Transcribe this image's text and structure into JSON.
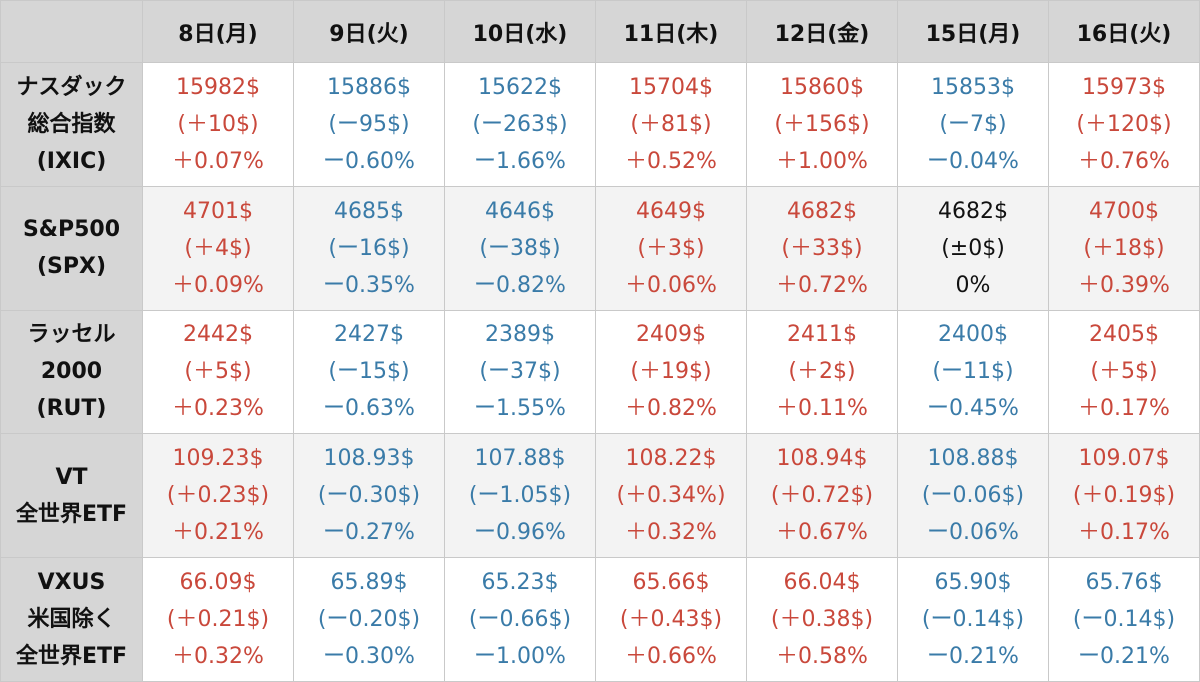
{
  "colors": {
    "up": "#c9483b",
    "down": "#3a7ba8",
    "flat": "#111111",
    "header_bg": "#d6d6d6"
  },
  "days": [
    "8日(月)",
    "9日(火)",
    "10日(水)",
    "11日(木)",
    "12日(金)",
    "15日(月)",
    "16日(火)"
  ],
  "rows": [
    {
      "label": [
        "ナスダック",
        "総合指数",
        "(IXIC)"
      ],
      "cells": [
        {
          "trend": "up",
          "price": "15982$",
          "change": "(＋10$)",
          "pct": "＋0.07%"
        },
        {
          "trend": "down",
          "price": "15886$",
          "change": "(ー95$)",
          "pct": "ー0.60%"
        },
        {
          "trend": "down",
          "price": "15622$",
          "change": "(ー263$)",
          "pct": "ー1.66%"
        },
        {
          "trend": "up",
          "price": "15704$",
          "change": "(＋81$)",
          "pct": "＋0.52%"
        },
        {
          "trend": "up",
          "price": "15860$",
          "change": "(＋156$)",
          "pct": "＋1.00%"
        },
        {
          "trend": "down",
          "price": "15853$",
          "change": "(ー7$)",
          "pct": "ー0.04%"
        },
        {
          "trend": "up",
          "price": "15973$",
          "change": "(＋120$)",
          "pct": "＋0.76%"
        }
      ]
    },
    {
      "label": [
        "S&P500",
        "(SPX)"
      ],
      "cells": [
        {
          "trend": "up",
          "price": "4701$",
          "change": "(＋4$)",
          "pct": "＋0.09%"
        },
        {
          "trend": "down",
          "price": "4685$",
          "change": "(ー16$)",
          "pct": "ー0.35%"
        },
        {
          "trend": "down",
          "price": "4646$",
          "change": "(ー38$)",
          "pct": "ー0.82%"
        },
        {
          "trend": "up",
          "price": "4649$",
          "change": "(＋3$)",
          "pct": "＋0.06%"
        },
        {
          "trend": "up",
          "price": "4682$",
          "change": "(＋33$)",
          "pct": "＋0.72%"
        },
        {
          "trend": "flat",
          "price": "4682$",
          "change": "(±0$)",
          "pct": "0%"
        },
        {
          "trend": "up",
          "price": "4700$",
          "change": "(＋18$)",
          "pct": "＋0.39%"
        }
      ]
    },
    {
      "label": [
        "ラッセル",
        "2000",
        "(RUT)"
      ],
      "cells": [
        {
          "trend": "up",
          "price": "2442$",
          "change": "(＋5$)",
          "pct": "＋0.23%"
        },
        {
          "trend": "down",
          "price": "2427$",
          "change": "(ー15$)",
          "pct": "ー0.63%"
        },
        {
          "trend": "down",
          "price": "2389$",
          "change": "(ー37$)",
          "pct": "ー1.55%"
        },
        {
          "trend": "up",
          "price": "2409$",
          "change": "(＋19$)",
          "pct": "＋0.82%"
        },
        {
          "trend": "up",
          "price": "2411$",
          "change": "(＋2$)",
          "pct": "＋0.11%"
        },
        {
          "trend": "down",
          "price": "2400$",
          "change": "(ー11$)",
          "pct": "ー0.45%"
        },
        {
          "trend": "up",
          "price": "2405$",
          "change": "(＋5$)",
          "pct": "＋0.17%"
        }
      ]
    },
    {
      "label": [
        "VT",
        "全世界ETF"
      ],
      "cells": [
        {
          "trend": "up",
          "price": "109.23$",
          "change": "(＋0.23$)",
          "pct": "＋0.21%"
        },
        {
          "trend": "down",
          "price": "108.93$",
          "change": "(ー0.30$)",
          "pct": "ー0.27%"
        },
        {
          "trend": "down",
          "price": "107.88$",
          "change": "(ー1.05$)",
          "pct": "ー0.96%"
        },
        {
          "trend": "up",
          "price": "108.22$",
          "change": "(＋0.34%)",
          "pct": "＋0.32%"
        },
        {
          "trend": "up",
          "price": "108.94$",
          "change": "(＋0.72$)",
          "pct": "＋0.67%"
        },
        {
          "trend": "down",
          "price": "108.88$",
          "change": "(ー0.06$)",
          "pct": "ー0.06%"
        },
        {
          "trend": "up",
          "price": "109.07$",
          "change": "(＋0.19$)",
          "pct": "＋0.17%"
        }
      ]
    },
    {
      "label": [
        "VXUS",
        "米国除く",
        "全世界ETF"
      ],
      "cells": [
        {
          "trend": "up",
          "price": "66.09$",
          "change": "(＋0.21$)",
          "pct": "＋0.32%"
        },
        {
          "trend": "down",
          "price": "65.89$",
          "change": "(ー0.20$)",
          "pct": "ー0.30%"
        },
        {
          "trend": "down",
          "price": "65.23$",
          "change": "(ー0.66$)",
          "pct": "ー1.00%"
        },
        {
          "trend": "up",
          "price": "65.66$",
          "change": "(＋0.43$)",
          "pct": "＋0.66%"
        },
        {
          "trend": "up",
          "price": "66.04$",
          "change": "(＋0.38$)",
          "pct": "＋0.58%"
        },
        {
          "trend": "down",
          "price": "65.90$",
          "change": "(ー0.14$)",
          "pct": "ー0.21%"
        },
        {
          "trend": "down",
          "price": "65.76$",
          "change": "(ー0.14$)",
          "pct": "ー0.21%"
        }
      ]
    }
  ]
}
